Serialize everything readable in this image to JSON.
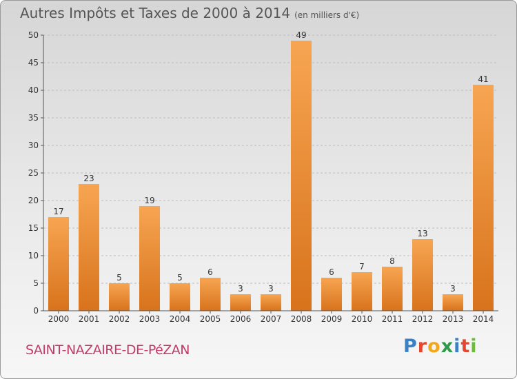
{
  "chart_data": {
    "type": "bar",
    "title": "Autres Impôts et Taxes de 2000 à 2014",
    "subtitle": "(en milliers d'€)",
    "categories": [
      "2000",
      "2001",
      "2002",
      "2003",
      "2004",
      "2005",
      "2006",
      "2007",
      "2008",
      "2009",
      "2010",
      "2011",
      "2012",
      "2013",
      "2014"
    ],
    "values": [
      17,
      23,
      5,
      19,
      5,
      6,
      3,
      3,
      49,
      6,
      7,
      8,
      13,
      3,
      41
    ],
    "ylim": [
      0,
      50
    ],
    "yticks": [
      0,
      5,
      10,
      15,
      20,
      25,
      30,
      35,
      40,
      45,
      50
    ],
    "grid": true,
    "bar_color_top": "#f7a552",
    "bar_color_bottom": "#d8731c"
  },
  "footer": {
    "commune": "SAINT-NAZAIRE-DE-PéZAN",
    "brand_letters": [
      "P",
      "r",
      "o",
      "x",
      "i",
      "t",
      "i"
    ],
    "brand_colors": [
      "#3b7fc4",
      "#e5462f",
      "#f2a81c",
      "#2f9a4b",
      "#3b7fc4",
      "#e5462f",
      "#6dbb3a"
    ]
  }
}
